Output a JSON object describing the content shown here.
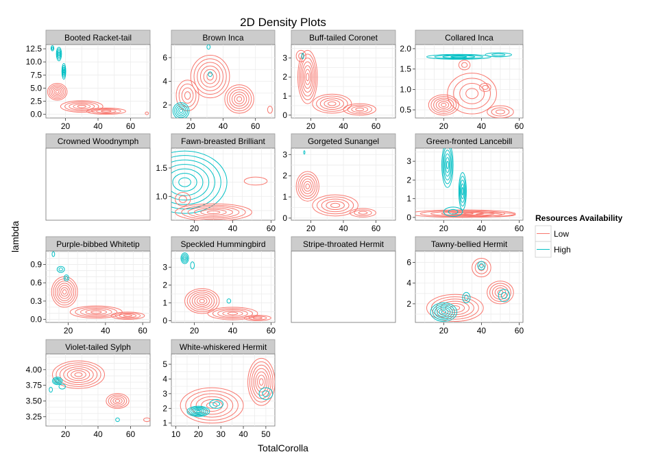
{
  "chart_data": {
    "type": "contour",
    "title": "2D Density Plots",
    "xlabel": "TotalCorolla",
    "ylabel": "lambda",
    "legend": {
      "title": "Resources Availability",
      "placement": "right",
      "entries": [
        {
          "name": "Low",
          "color": "#F8766D"
        },
        {
          "name": "High",
          "color": "#00BFC4"
        }
      ]
    },
    "grid": true,
    "panels": [
      {
        "name": "Booted Racket-tail",
        "xlim": [
          8,
          72
        ],
        "ylim": [
          -0.7,
          13.3
        ],
        "xticks": [
          20,
          40,
          60
        ],
        "yticks": [
          0.0,
          2.5,
          5.0,
          7.5,
          10.0,
          12.5
        ],
        "ytick_labels": [
          "0.0",
          "2.5",
          "5.0",
          "7.5",
          "10.0",
          "12.5"
        ],
        "blobs": [
          {
            "g": "Low",
            "cx": 15,
            "cy": 4.3,
            "rx": 6,
            "ry": 1.6,
            "n": 6
          },
          {
            "g": "Low",
            "cx": 30,
            "cy": 1.5,
            "rx": 13,
            "ry": 1.1,
            "n": 5
          },
          {
            "g": "Low",
            "cx": 45,
            "cy": 0.6,
            "rx": 12,
            "ry": 0.6,
            "n": 4
          },
          {
            "g": "Low",
            "cx": 70,
            "cy": 0.2,
            "rx": 1,
            "ry": 0.25,
            "n": 1
          },
          {
            "g": "High",
            "cx": 16,
            "cy": 11.5,
            "rx": 1.6,
            "ry": 1.3,
            "n": 4
          },
          {
            "g": "High",
            "cx": 19,
            "cy": 8.2,
            "rx": 1.2,
            "ry": 1.5,
            "n": 4
          },
          {
            "g": "High",
            "cx": 12,
            "cy": 12.6,
            "rx": 0.9,
            "ry": 0.5,
            "n": 2
          }
        ]
      },
      {
        "name": "Brown Inca",
        "xlim": [
          8,
          72
        ],
        "ylim": [
          0.9,
          7.1
        ],
        "xticks": [
          20,
          40,
          60
        ],
        "yticks": [
          2,
          4,
          6
        ],
        "ytick_labels": [
          "2",
          "4",
          "6"
        ],
        "blobs": [
          {
            "g": "Low",
            "cx": 32,
            "cy": 4.4,
            "rx": 12,
            "ry": 1.8,
            "n": 6
          },
          {
            "g": "Low",
            "cx": 50,
            "cy": 2.5,
            "rx": 9,
            "ry": 1.2,
            "n": 6
          },
          {
            "g": "Low",
            "cx": 18,
            "cy": 2.8,
            "rx": 7,
            "ry": 1.3,
            "n": 4
          },
          {
            "g": "Low",
            "cx": 69,
            "cy": 1.6,
            "rx": 1.5,
            "ry": 0.3,
            "n": 1
          },
          {
            "g": "High",
            "cx": 14,
            "cy": 1.5,
            "rx": 5,
            "ry": 0.7,
            "n": 5
          },
          {
            "g": "High",
            "cx": 31,
            "cy": 6.9,
            "rx": 1,
            "ry": 0.2,
            "n": 1
          },
          {
            "g": "High",
            "cx": 32,
            "cy": 4.6,
            "rx": 1.2,
            "ry": 0.2,
            "n": 1
          }
        ]
      },
      {
        "name": "Buff-tailed Coronet",
        "xlim": [
          8,
          72
        ],
        "ylim": [
          -0.15,
          3.7
        ],
        "xticks": [
          20,
          40,
          60
        ],
        "yticks": [
          0,
          1,
          2,
          3
        ],
        "ytick_labels": [
          "0",
          "1",
          "2",
          "3"
        ],
        "blobs": [
          {
            "g": "Low",
            "cx": 18,
            "cy": 2.0,
            "rx": 6,
            "ry": 1.4,
            "n": 7
          },
          {
            "g": "Low",
            "cx": 33,
            "cy": 0.6,
            "rx": 12,
            "ry": 0.5,
            "n": 5
          },
          {
            "g": "Low",
            "cx": 50,
            "cy": 0.3,
            "rx": 10,
            "ry": 0.3,
            "n": 4
          },
          {
            "g": "Low",
            "cx": 14,
            "cy": 3.1,
            "rx": 3,
            "ry": 0.3,
            "n": 2
          },
          {
            "g": "High",
            "cx": 15,
            "cy": 3.1,
            "rx": 0.6,
            "ry": 0.15,
            "n": 1
          }
        ]
      },
      {
        "name": "Collared Inca",
        "xlim": [
          5,
          62
        ],
        "ylim": [
          0.3,
          2.1
        ],
        "xticks": [
          20,
          40,
          60
        ],
        "yticks": [
          0.5,
          1.0,
          1.5,
          2.0
        ],
        "ytick_labels": [
          "0.5",
          "1.0",
          "1.5",
          "2.0"
        ],
        "blobs": [
          {
            "g": "Low",
            "cx": 20,
            "cy": 0.62,
            "rx": 8,
            "ry": 0.25,
            "n": 6
          },
          {
            "g": "Low",
            "cx": 35,
            "cy": 0.9,
            "rx": 13,
            "ry": 0.5,
            "n": 4
          },
          {
            "g": "Low",
            "cx": 50,
            "cy": 0.45,
            "rx": 7,
            "ry": 0.15,
            "n": 3
          },
          {
            "g": "Low",
            "cx": 31,
            "cy": 1.6,
            "rx": 3,
            "ry": 0.12,
            "n": 2
          },
          {
            "g": "Low",
            "cx": 42,
            "cy": 1.05,
            "rx": 3,
            "ry": 0.1,
            "n": 2
          },
          {
            "g": "High",
            "cx": 28,
            "cy": 1.8,
            "rx": 17,
            "ry": 0.06,
            "n": 4
          },
          {
            "g": "High",
            "cx": 49,
            "cy": 1.85,
            "rx": 7,
            "ry": 0.05,
            "n": 2
          }
        ]
      },
      {
        "name": "Crowned Woodnymph",
        "xlim": [
          8,
          72
        ],
        "ylim": [
          0,
          1
        ],
        "xticks": [],
        "yticks": [],
        "ytick_labels": [],
        "blobs": []
      },
      {
        "name": "Fawn-breasted Brilliant",
        "xlim": [
          8,
          62
        ],
        "ylim": [
          0.58,
          1.85
        ],
        "xticks": [
          20,
          40,
          60
        ],
        "yticks": [
          1.0,
          1.5
        ],
        "ytick_labels": [
          "1.0",
          "1.5"
        ],
        "blobs": [
          {
            "g": "High",
            "cx": 15,
            "cy": 1.25,
            "rx": 22,
            "ry": 0.55,
            "n": 7
          },
          {
            "g": "Low",
            "cx": 30,
            "cy": 0.72,
            "rx": 20,
            "ry": 0.15,
            "n": 6
          },
          {
            "g": "Low",
            "cx": 52,
            "cy": 1.27,
            "rx": 6,
            "ry": 0.07,
            "n": 1
          },
          {
            "g": "Low",
            "cx": 14,
            "cy": 0.95,
            "rx": 4,
            "ry": 0.12,
            "n": 2
          }
        ]
      },
      {
        "name": "Gorgeted Sunangel",
        "xlim": [
          8,
          72
        ],
        "ylim": [
          -0.1,
          3.3
        ],
        "xticks": [
          20,
          40,
          60
        ],
        "yticks": [
          0,
          1,
          2,
          3
        ],
        "ytick_labels": [
          "0",
          "1",
          "2",
          "3"
        ],
        "blobs": [
          {
            "g": "Low",
            "cx": 18,
            "cy": 1.5,
            "rx": 7,
            "ry": 0.7,
            "n": 6
          },
          {
            "g": "Low",
            "cx": 35,
            "cy": 0.6,
            "rx": 14,
            "ry": 0.5,
            "n": 5
          },
          {
            "g": "Low",
            "cx": 52,
            "cy": 0.25,
            "rx": 8,
            "ry": 0.2,
            "n": 3
          },
          {
            "g": "High",
            "cx": 16,
            "cy": 3.1,
            "rx": 0.4,
            "ry": 0.08,
            "n": 1
          }
        ]
      },
      {
        "name": "Green-fronted Lancebill",
        "xlim": [
          5,
          62
        ],
        "ylim": [
          -0.15,
          3.7
        ],
        "xticks": [
          20,
          40,
          60
        ],
        "yticks": [
          0,
          1,
          2,
          3
        ],
        "ytick_labels": [
          "0",
          "1",
          "2",
          "3"
        ],
        "blobs": [
          {
            "g": "Low",
            "cx": 30,
            "cy": 0.2,
            "rx": 28,
            "ry": 0.2,
            "n": 5
          },
          {
            "g": "Low",
            "cx": 44,
            "cy": 0.15,
            "rx": 14,
            "ry": 0.12,
            "n": 2
          },
          {
            "g": "High",
            "cx": 22,
            "cy": 2.8,
            "rx": 3,
            "ry": 1.2,
            "n": 6
          },
          {
            "g": "High",
            "cx": 30,
            "cy": 1.4,
            "rx": 2,
            "ry": 1.0,
            "n": 5
          },
          {
            "g": "High",
            "cx": 25,
            "cy": 0.3,
            "rx": 5,
            "ry": 0.25,
            "n": 2
          }
        ]
      },
      {
        "name": "Purple-bibbed Whitetip",
        "xlim": [
          8,
          64
        ],
        "ylim": [
          -0.05,
          1.12
        ],
        "xticks": [
          20,
          40,
          60
        ],
        "yticks": [
          0.0,
          0.3,
          0.6,
          0.9
        ],
        "ytick_labels": [
          "0.0",
          "0.3",
          "0.6",
          "0.9"
        ],
        "blobs": [
          {
            "g": "Low",
            "cx": 18,
            "cy": 0.45,
            "rx": 7,
            "ry": 0.25,
            "n": 7
          },
          {
            "g": "Low",
            "cx": 35,
            "cy": 0.12,
            "rx": 14,
            "ry": 0.1,
            "n": 5
          },
          {
            "g": "Low",
            "cx": 52,
            "cy": 0.06,
            "rx": 9,
            "ry": 0.06,
            "n": 4
          },
          {
            "g": "High",
            "cx": 16,
            "cy": 0.82,
            "rx": 2,
            "ry": 0.05,
            "n": 2
          },
          {
            "g": "High",
            "cx": 19,
            "cy": 0.68,
            "rx": 1.3,
            "ry": 0.05,
            "n": 2
          },
          {
            "g": "High",
            "cx": 12,
            "cy": 1.07,
            "rx": 0.7,
            "ry": 0.04,
            "n": 1
          }
        ]
      },
      {
        "name": "Speckled Hummingbird",
        "xlim": [
          8,
          62
        ],
        "ylim": [
          -0.1,
          3.9
        ],
        "xticks": [
          20,
          40,
          60
        ],
        "yticks": [
          0,
          1,
          2,
          3
        ],
        "ytick_labels": [
          "0",
          "1",
          "2",
          "3"
        ],
        "blobs": [
          {
            "g": "Low",
            "cx": 24,
            "cy": 1.1,
            "rx": 9,
            "ry": 0.7,
            "n": 7
          },
          {
            "g": "Low",
            "cx": 40,
            "cy": 0.4,
            "rx": 13,
            "ry": 0.35,
            "n": 5
          },
          {
            "g": "Low",
            "cx": 53,
            "cy": 0.15,
            "rx": 7,
            "ry": 0.15,
            "n": 3
          },
          {
            "g": "High",
            "cx": 15,
            "cy": 3.5,
            "rx": 2,
            "ry": 0.3,
            "n": 4
          },
          {
            "g": "High",
            "cx": 19,
            "cy": 3.1,
            "rx": 1,
            "ry": 0.2,
            "n": 1
          },
          {
            "g": "High",
            "cx": 38,
            "cy": 1.1,
            "rx": 1,
            "ry": 0.12,
            "n": 1
          }
        ]
      },
      {
        "name": "Stripe-throated Hermit",
        "xlim": [
          8,
          72
        ],
        "ylim": [
          0,
          1
        ],
        "xticks": [],
        "yticks": [],
        "ytick_labels": [],
        "blobs": []
      },
      {
        "name": "Tawny-bellied Hermit",
        "xlim": [
          5,
          62
        ],
        "ylim": [
          0.2,
          7.1
        ],
        "xticks": [
          20,
          40,
          60
        ],
        "yticks": [
          2,
          4,
          6
        ],
        "ytick_labels": [
          "2",
          "4",
          "6"
        ],
        "blobs": [
          {
            "g": "Low",
            "cx": 26,
            "cy": 1.6,
            "rx": 15,
            "ry": 1.3,
            "n": 6
          },
          {
            "g": "Low",
            "cx": 50,
            "cy": 3.1,
            "rx": 7,
            "ry": 1.1,
            "n": 5
          },
          {
            "g": "Low",
            "cx": 40,
            "cy": 5.5,
            "rx": 5,
            "ry": 0.9,
            "n": 3
          },
          {
            "g": "High",
            "cx": 20,
            "cy": 1.2,
            "rx": 7,
            "ry": 0.9,
            "n": 6
          },
          {
            "g": "High",
            "cx": 40,
            "cy": 5.7,
            "rx": 2,
            "ry": 0.4,
            "n": 2
          },
          {
            "g": "High",
            "cx": 52,
            "cy": 2.8,
            "rx": 3,
            "ry": 0.6,
            "n": 2
          },
          {
            "g": "High",
            "cx": 32,
            "cy": 2.6,
            "rx": 2,
            "ry": 0.5,
            "n": 2
          }
        ]
      },
      {
        "name": "Violet-tailed Sylph",
        "xlim": [
          8,
          72
        ],
        "ylim": [
          3.1,
          4.25
        ],
        "xticks": [
          20,
          40,
          60
        ],
        "yticks": [
          3.25,
          3.5,
          3.75,
          4.0
        ],
        "ytick_labels": [
          "3.25",
          "3.50",
          "3.75",
          "4.00"
        ],
        "blobs": [
          {
            "g": "Low",
            "cx": 28,
            "cy": 3.92,
            "rx": 16,
            "ry": 0.22,
            "n": 7
          },
          {
            "g": "Low",
            "cx": 52,
            "cy": 3.5,
            "rx": 7,
            "ry": 0.12,
            "n": 5
          },
          {
            "g": "Low",
            "cx": 70,
            "cy": 3.2,
            "rx": 2,
            "ry": 0.03,
            "n": 1
          },
          {
            "g": "High",
            "cx": 15,
            "cy": 3.82,
            "rx": 3,
            "ry": 0.06,
            "n": 4
          },
          {
            "g": "High",
            "cx": 11,
            "cy": 3.68,
            "rx": 1,
            "ry": 0.04,
            "n": 1
          },
          {
            "g": "High",
            "cx": 18,
            "cy": 3.73,
            "rx": 2,
            "ry": 0.04,
            "n": 1
          },
          {
            "g": "High",
            "cx": 52,
            "cy": 3.2,
            "rx": 1.2,
            "ry": 0.03,
            "n": 1
          }
        ]
      },
      {
        "name": "White-whiskered Hermit",
        "xlim": [
          8,
          54
        ],
        "ylim": [
          0.8,
          5.7
        ],
        "xticks": [
          10,
          20,
          30,
          40,
          50
        ],
        "yticks": [
          1,
          2,
          3,
          4,
          5
        ],
        "ytick_labels": [
          "1",
          "2",
          "3",
          "4",
          "5"
        ],
        "blobs": [
          {
            "g": "Low",
            "cx": 48,
            "cy": 3.8,
            "rx": 6,
            "ry": 1.6,
            "n": 7
          },
          {
            "g": "Low",
            "cx": 26,
            "cy": 2.2,
            "rx": 14,
            "ry": 1.2,
            "n": 6
          },
          {
            "g": "High",
            "cx": 20,
            "cy": 1.8,
            "rx": 5,
            "ry": 0.35,
            "n": 6
          },
          {
            "g": "High",
            "cx": 28,
            "cy": 2.3,
            "rx": 3,
            "ry": 0.3,
            "n": 2
          },
          {
            "g": "High",
            "cx": 50,
            "cy": 3.0,
            "rx": 3,
            "ry": 0.4,
            "n": 2
          }
        ]
      }
    ]
  }
}
